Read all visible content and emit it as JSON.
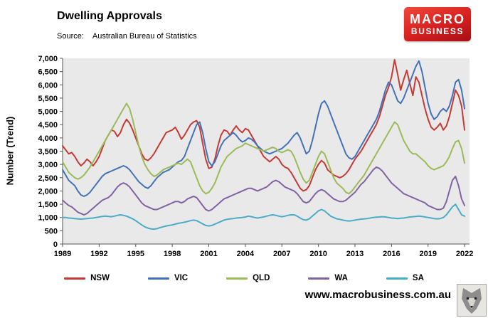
{
  "header": {
    "title": "Dwelling Approvals",
    "source_label": "Source:",
    "source_value": "Australian Bureau of Statistics"
  },
  "logo": {
    "line1": "MACRO",
    "line2": "BUSINESS",
    "bg_color": "#d61f1f"
  },
  "footer": {
    "website": "www.macrobusiness.com.au"
  },
  "chart_data": {
    "type": "line",
    "title": "Dwelling Approvals",
    "xlabel": "",
    "ylabel": "Number (Trend)",
    "x_start": 1989,
    "x_step": 0.25,
    "xlim": [
      1989,
      2022.4
    ],
    "ylim": [
      0,
      7000
    ],
    "y_tick_step": 500,
    "x_ticks": [
      1989,
      1992,
      1995,
      1998,
      2001,
      2004,
      2007,
      2010,
      2013,
      2016,
      2019,
      2022
    ],
    "grid": false,
    "legend_position": "bottom",
    "plot_bg": "#e9e9e9",
    "series": [
      {
        "name": "NSW",
        "color": "#c43b35",
        "values": [
          3700,
          3550,
          3400,
          3450,
          3300,
          3100,
          2950,
          3050,
          3200,
          3100,
          2950,
          3100,
          3300,
          3600,
          3900,
          4100,
          4300,
          4250,
          4050,
          4200,
          4500,
          4700,
          4550,
          4300,
          4000,
          3700,
          3400,
          3200,
          3150,
          3250,
          3400,
          3600,
          3800,
          4000,
          4200,
          4250,
          4300,
          4400,
          4200,
          3950,
          4100,
          4300,
          4500,
          4600,
          4650,
          4400,
          3800,
          3200,
          2850,
          2900,
          3200,
          3700,
          4100,
          4300,
          4250,
          4100,
          4300,
          4450,
          4300,
          4200,
          4350,
          4300,
          4100,
          3900,
          3700,
          3500,
          3300,
          3200,
          3100,
          3200,
          3300,
          3200,
          3000,
          2900,
          2850,
          2700,
          2500,
          2300,
          2100,
          2000,
          2050,
          2200,
          2500,
          2800,
          3000,
          3150,
          3050,
          2800,
          2700,
          2600,
          2550,
          2500,
          2550,
          2650,
          2800,
          3000,
          3200,
          3350,
          3500,
          3700,
          3900,
          4100,
          4300,
          4500,
          4800,
          5200,
          5600,
          5900,
          6300,
          6950,
          6400,
          5800,
          6200,
          6550,
          6050,
          5600,
          6300,
          6100,
          5600,
          5100,
          4700,
          4400,
          4300,
          4400,
          4550,
          4300,
          4450,
          4800,
          5300,
          5800,
          5600,
          5200,
          4300
        ]
      },
      {
        "name": "VIC",
        "color": "#4472b8",
        "values": [
          2800,
          2600,
          2400,
          2300,
          2200,
          2000,
          1850,
          1800,
          1850,
          1950,
          2100,
          2250,
          2400,
          2550,
          2650,
          2700,
          2750,
          2800,
          2850,
          2900,
          2950,
          2900,
          2800,
          2650,
          2500,
          2350,
          2250,
          2150,
          2100,
          2200,
          2350,
          2500,
          2600,
          2700,
          2750,
          2800,
          2900,
          3000,
          3100,
          3150,
          3300,
          3600,
          3900,
          4200,
          4500,
          4600,
          4200,
          3600,
          3100,
          2950,
          3100,
          3400,
          3700,
          3900,
          4000,
          4100,
          4200,
          4100,
          3950,
          3850,
          3900,
          4000,
          3950,
          3850,
          3700,
          3600,
          3500,
          3450,
          3400,
          3450,
          3500,
          3550,
          3600,
          3700,
          3800,
          3950,
          4100,
          4200,
          4000,
          3700,
          3400,
          3500,
          3900,
          4400,
          4900,
          5300,
          5400,
          5200,
          4900,
          4600,
          4300,
          4000,
          3700,
          3400,
          3250,
          3200,
          3300,
          3500,
          3700,
          3900,
          4100,
          4300,
          4500,
          4700,
          5000,
          5400,
          5800,
          6100,
          6000,
          5700,
          5400,
          5300,
          5500,
          5800,
          6100,
          6400,
          6700,
          6900,
          6500,
          5900,
          5300,
          4900,
          4700,
          4800,
          5000,
          5100,
          5000,
          5200,
          5600,
          6100,
          6200,
          5800,
          5100
        ]
      },
      {
        "name": "QLD",
        "color": "#9bbb59",
        "values": [
          3100,
          2900,
          2700,
          2600,
          2500,
          2450,
          2500,
          2600,
          2750,
          2900,
          3100,
          3300,
          3500,
          3700,
          3900,
          4100,
          4300,
          4500,
          4700,
          4900,
          5100,
          5300,
          5100,
          4700,
          4200,
          3700,
          3300,
          3000,
          2800,
          2650,
          2550,
          2600,
          2700,
          2800,
          2850,
          2900,
          2950,
          3000,
          3050,
          3000,
          3100,
          3200,
          3100,
          2800,
          2500,
          2200,
          2000,
          1900,
          1950,
          2100,
          2300,
          2600,
          2900,
          3100,
          3300,
          3400,
          3500,
          3600,
          3650,
          3700,
          3800,
          3750,
          3700,
          3650,
          3600,
          3550,
          3500,
          3550,
          3600,
          3650,
          3600,
          3500,
          3450,
          3500,
          3550,
          3500,
          3300,
          3000,
          2700,
          2450,
          2300,
          2400,
          2700,
          3000,
          3300,
          3500,
          3400,
          3100,
          2800,
          2500,
          2300,
          2200,
          2100,
          1950,
          1900,
          2000,
          2150,
          2300,
          2450,
          2600,
          2800,
          3000,
          3200,
          3400,
          3600,
          3800,
          4000,
          4200,
          4400,
          4600,
          4500,
          4200,
          3900,
          3700,
          3500,
          3400,
          3400,
          3300,
          3200,
          3100,
          2950,
          2850,
          2800,
          2850,
          2900,
          2950,
          3100,
          3300,
          3600,
          3850,
          3900,
          3600,
          3050
        ]
      },
      {
        "name": "WA",
        "color": "#8064a2",
        "values": [
          1650,
          1550,
          1450,
          1400,
          1300,
          1200,
          1150,
          1100,
          1150,
          1250,
          1350,
          1450,
          1550,
          1650,
          1700,
          1750,
          1850,
          2000,
          2150,
          2250,
          2300,
          2250,
          2150,
          2000,
          1850,
          1700,
          1550,
          1450,
          1400,
          1350,
          1300,
          1300,
          1350,
          1400,
          1450,
          1500,
          1550,
          1600,
          1600,
          1550,
          1600,
          1700,
          1750,
          1800,
          1750,
          1600,
          1450,
          1300,
          1250,
          1300,
          1400,
          1500,
          1600,
          1700,
          1750,
          1800,
          1850,
          1900,
          1950,
          2000,
          2050,
          2100,
          2100,
          2050,
          2000,
          2050,
          2100,
          2150,
          2250,
          2350,
          2400,
          2350,
          2250,
          2150,
          2100,
          2050,
          2000,
          1900,
          1750,
          1600,
          1550,
          1600,
          1750,
          1900,
          2000,
          2050,
          2000,
          1900,
          1800,
          1700,
          1650,
          1600,
          1600,
          1650,
          1750,
          1850,
          1950,
          2100,
          2250,
          2350,
          2500,
          2650,
          2800,
          2900,
          2850,
          2750,
          2600,
          2450,
          2300,
          2200,
          2100,
          2000,
          1900,
          1850,
          1800,
          1750,
          1700,
          1650,
          1600,
          1550,
          1450,
          1400,
          1350,
          1300,
          1300,
          1350,
          1600,
          2000,
          2400,
          2550,
          2200,
          1700,
          1450
        ]
      },
      {
        "name": "SA",
        "color": "#4bacc6",
        "values": [
          1000,
          1000,
          980,
          970,
          960,
          950,
          940,
          950,
          960,
          970,
          980,
          1000,
          1020,
          1040,
          1050,
          1040,
          1030,
          1050,
          1080,
          1100,
          1080,
          1050,
          1000,
          950,
          880,
          800,
          720,
          650,
          600,
          570,
          560,
          580,
          620,
          650,
          680,
          700,
          720,
          750,
          780,
          800,
          820,
          850,
          880,
          900,
          880,
          820,
          760,
          700,
          680,
          700,
          750,
          800,
          850,
          900,
          930,
          950,
          960,
          980,
          990,
          1000,
          1020,
          1050,
          1030,
          1000,
          980,
          1000,
          1020,
          1050,
          1080,
          1100,
          1080,
          1050,
          1030,
          1050,
          1080,
          1100,
          1100,
          1050,
          980,
          920,
          900,
          950,
          1050,
          1150,
          1250,
          1300,
          1250,
          1150,
          1050,
          1000,
          950,
          930,
          900,
          880,
          870,
          880,
          900,
          920,
          940,
          950,
          960,
          980,
          1000,
          1010,
          1020,
          1030,
          1020,
          1000,
          980,
          970,
          960,
          970,
          980,
          1000,
          1020,
          1030,
          1040,
          1050,
          1040,
          1020,
          1000,
          980,
          960,
          950,
          960,
          1000,
          1100,
          1250,
          1400,
          1500,
          1300,
          1100,
          1050
        ]
      }
    ]
  }
}
